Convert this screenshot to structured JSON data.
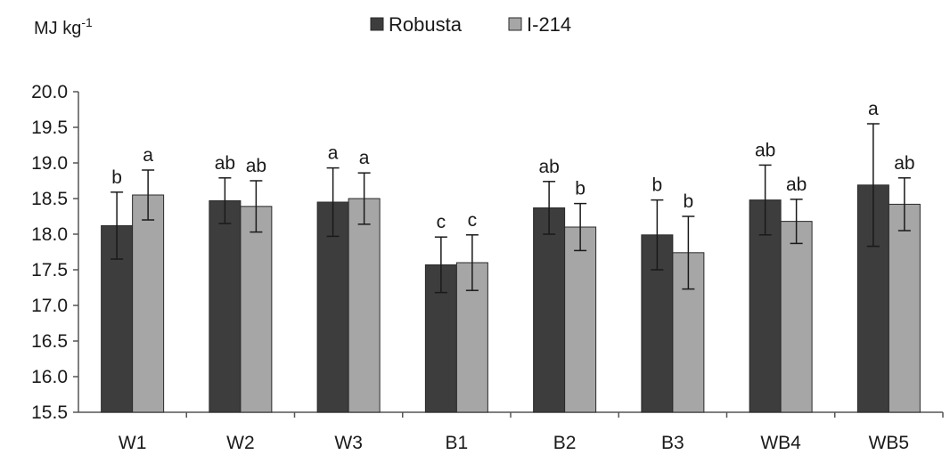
{
  "chart_data": {
    "type": "bar",
    "ylabel": "MJ kg",
    "ylabel_superscript": "-1",
    "ylim": [
      15.5,
      20.0
    ],
    "yticks": [
      "20.0",
      "19.5",
      "19.0",
      "18.5",
      "18.0",
      "17.5",
      "17.0",
      "16.5",
      "16.0",
      "15.5"
    ],
    "grid": false,
    "legend_position": "top-center",
    "categories": [
      "W1",
      "W2",
      "W3",
      "B1",
      "B2",
      "B3",
      "WB4",
      "WB5"
    ],
    "series": [
      {
        "name": "Robusta",
        "color": "#3d3d3d",
        "values": [
          18.12,
          18.47,
          18.45,
          17.57,
          18.37,
          17.99,
          18.48,
          18.69
        ],
        "errors": [
          0.47,
          0.32,
          0.48,
          0.39,
          0.37,
          0.49,
          0.49,
          0.86
        ],
        "letters": [
          "b",
          "ab",
          "a",
          "c",
          "ab",
          "b",
          "ab",
          "a"
        ]
      },
      {
        "name": "I-214",
        "color": "#a6a6a6",
        "values": [
          18.55,
          18.39,
          18.5,
          17.6,
          18.1,
          17.74,
          18.18,
          18.42
        ],
        "errors": [
          0.35,
          0.36,
          0.36,
          0.39,
          0.33,
          0.51,
          0.31,
          0.37
        ],
        "letters": [
          "a",
          "ab",
          "a",
          "c",
          "b",
          "b",
          "ab",
          "ab"
        ]
      }
    ]
  }
}
